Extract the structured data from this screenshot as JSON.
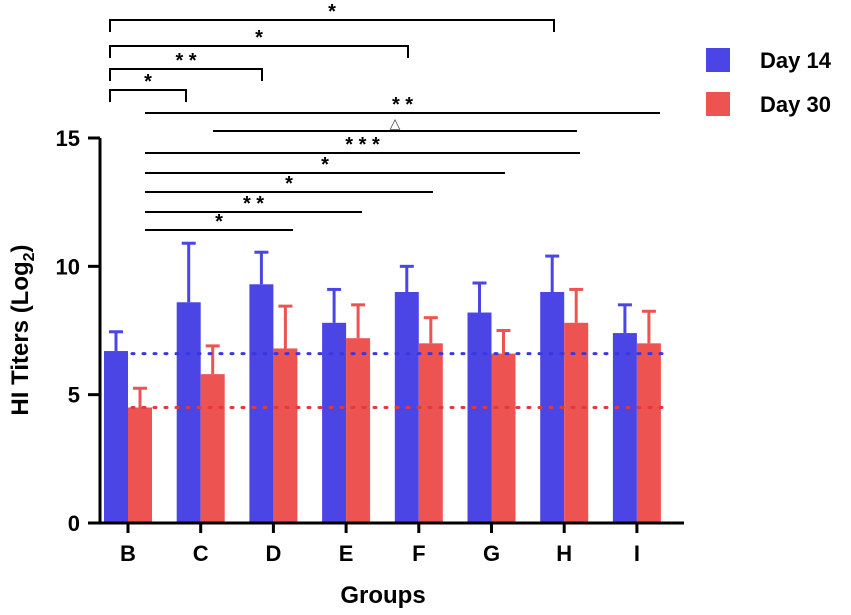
{
  "chart_data": {
    "type": "bar",
    "title": "",
    "xlabel": "Groups",
    "ylabel_main": "HI Titers (Log",
    "ylabel_sub": "2",
    "ylabel_close": ")",
    "ylim": [
      0,
      15
    ],
    "yticks": [
      "0",
      "5",
      "10",
      "15"
    ],
    "categories": [
      "B",
      "C",
      "D",
      "E",
      "F",
      "G",
      "H",
      "I"
    ],
    "series": [
      {
        "name": "Day 14",
        "color": "#4b45e6",
        "values": [
          6.7,
          8.6,
          9.3,
          7.8,
          9.0,
          8.2,
          9.0,
          7.4
        ],
        "errors": [
          0.75,
          2.3,
          1.25,
          1.3,
          1.0,
          1.15,
          1.4,
          1.1
        ]
      },
      {
        "name": "Day 30",
        "color": "#ec5351",
        "values": [
          4.5,
          5.8,
          6.8,
          7.2,
          7.0,
          6.6,
          7.8,
          7.0
        ],
        "errors": [
          0.75,
          1.1,
          1.65,
          1.3,
          1.0,
          0.9,
          1.3,
          1.25
        ]
      }
    ],
    "reference_lines": [
      {
        "series": "Day 14",
        "value": 6.6,
        "color": "#3b37e0"
      },
      {
        "series": "Day 30",
        "value": 4.5,
        "color": "#e03a3a"
      }
    ],
    "day14_comparisons": [
      {
        "from": "B",
        "to": "H",
        "label": "*"
      },
      {
        "from": "B",
        "to": "F",
        "label": "*"
      },
      {
        "from": "B",
        "to": "D",
        "label": "* *"
      },
      {
        "from": "B",
        "to": "C",
        "label": "*"
      }
    ],
    "day30_comparisons": [
      {
        "from": "B",
        "to": "I",
        "label": "* *"
      },
      {
        "from": "C",
        "to": "H",
        "label": "△"
      },
      {
        "from": "B",
        "to": "H",
        "label": "* * *"
      },
      {
        "from": "B",
        "to": "G",
        "label": "*"
      },
      {
        "from": "B",
        "to": "F",
        "label": "*"
      },
      {
        "from": "B",
        "to": "E",
        "label": "* *"
      },
      {
        "from": "B",
        "to": "D",
        "label": "*"
      }
    ]
  }
}
